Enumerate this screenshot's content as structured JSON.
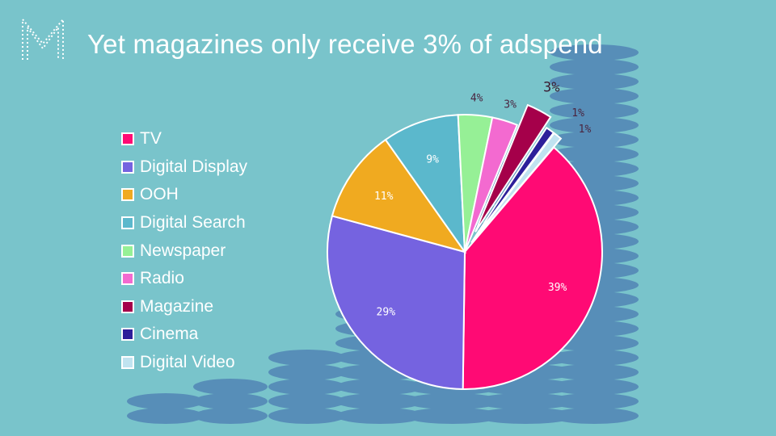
{
  "slide": {
    "title": "Yet magazines only receive 3% of adspend",
    "logo_letter": "M"
  },
  "colors": {
    "background": "#79c4cb",
    "coin": "#2a4fa0"
  },
  "chart_data": {
    "type": "pie",
    "title": "",
    "categories": [
      "TV",
      "Digital Display",
      "OOH",
      "Digital Search",
      "Newspaper",
      "Radio",
      "Magazine",
      "Cinema",
      "Digital Video"
    ],
    "values": [
      39,
      29,
      11,
      9,
      4,
      3,
      3,
      1,
      1
    ],
    "labels": [
      "39%",
      "29%",
      "11%",
      "9%",
      "4%",
      "3%",
      "3%",
      "1%",
      "1%"
    ],
    "exploded": [
      "Magazine",
      "Cinema",
      "Digital Video"
    ],
    "colors": [
      "#ff0a74",
      "#7563e0",
      "#f0aa20",
      "#5bb8cc",
      "#96f096",
      "#f36ad0",
      "#a5004a",
      "#2d1f9a",
      "#c0e3f0"
    ],
    "legend": {
      "position": "left",
      "items": [
        "TV",
        "Digital Display",
        "OOH",
        "Digital Search",
        "Newspaper",
        "Radio",
        "Magazine",
        "Cinema",
        "Digital Video"
      ]
    }
  }
}
